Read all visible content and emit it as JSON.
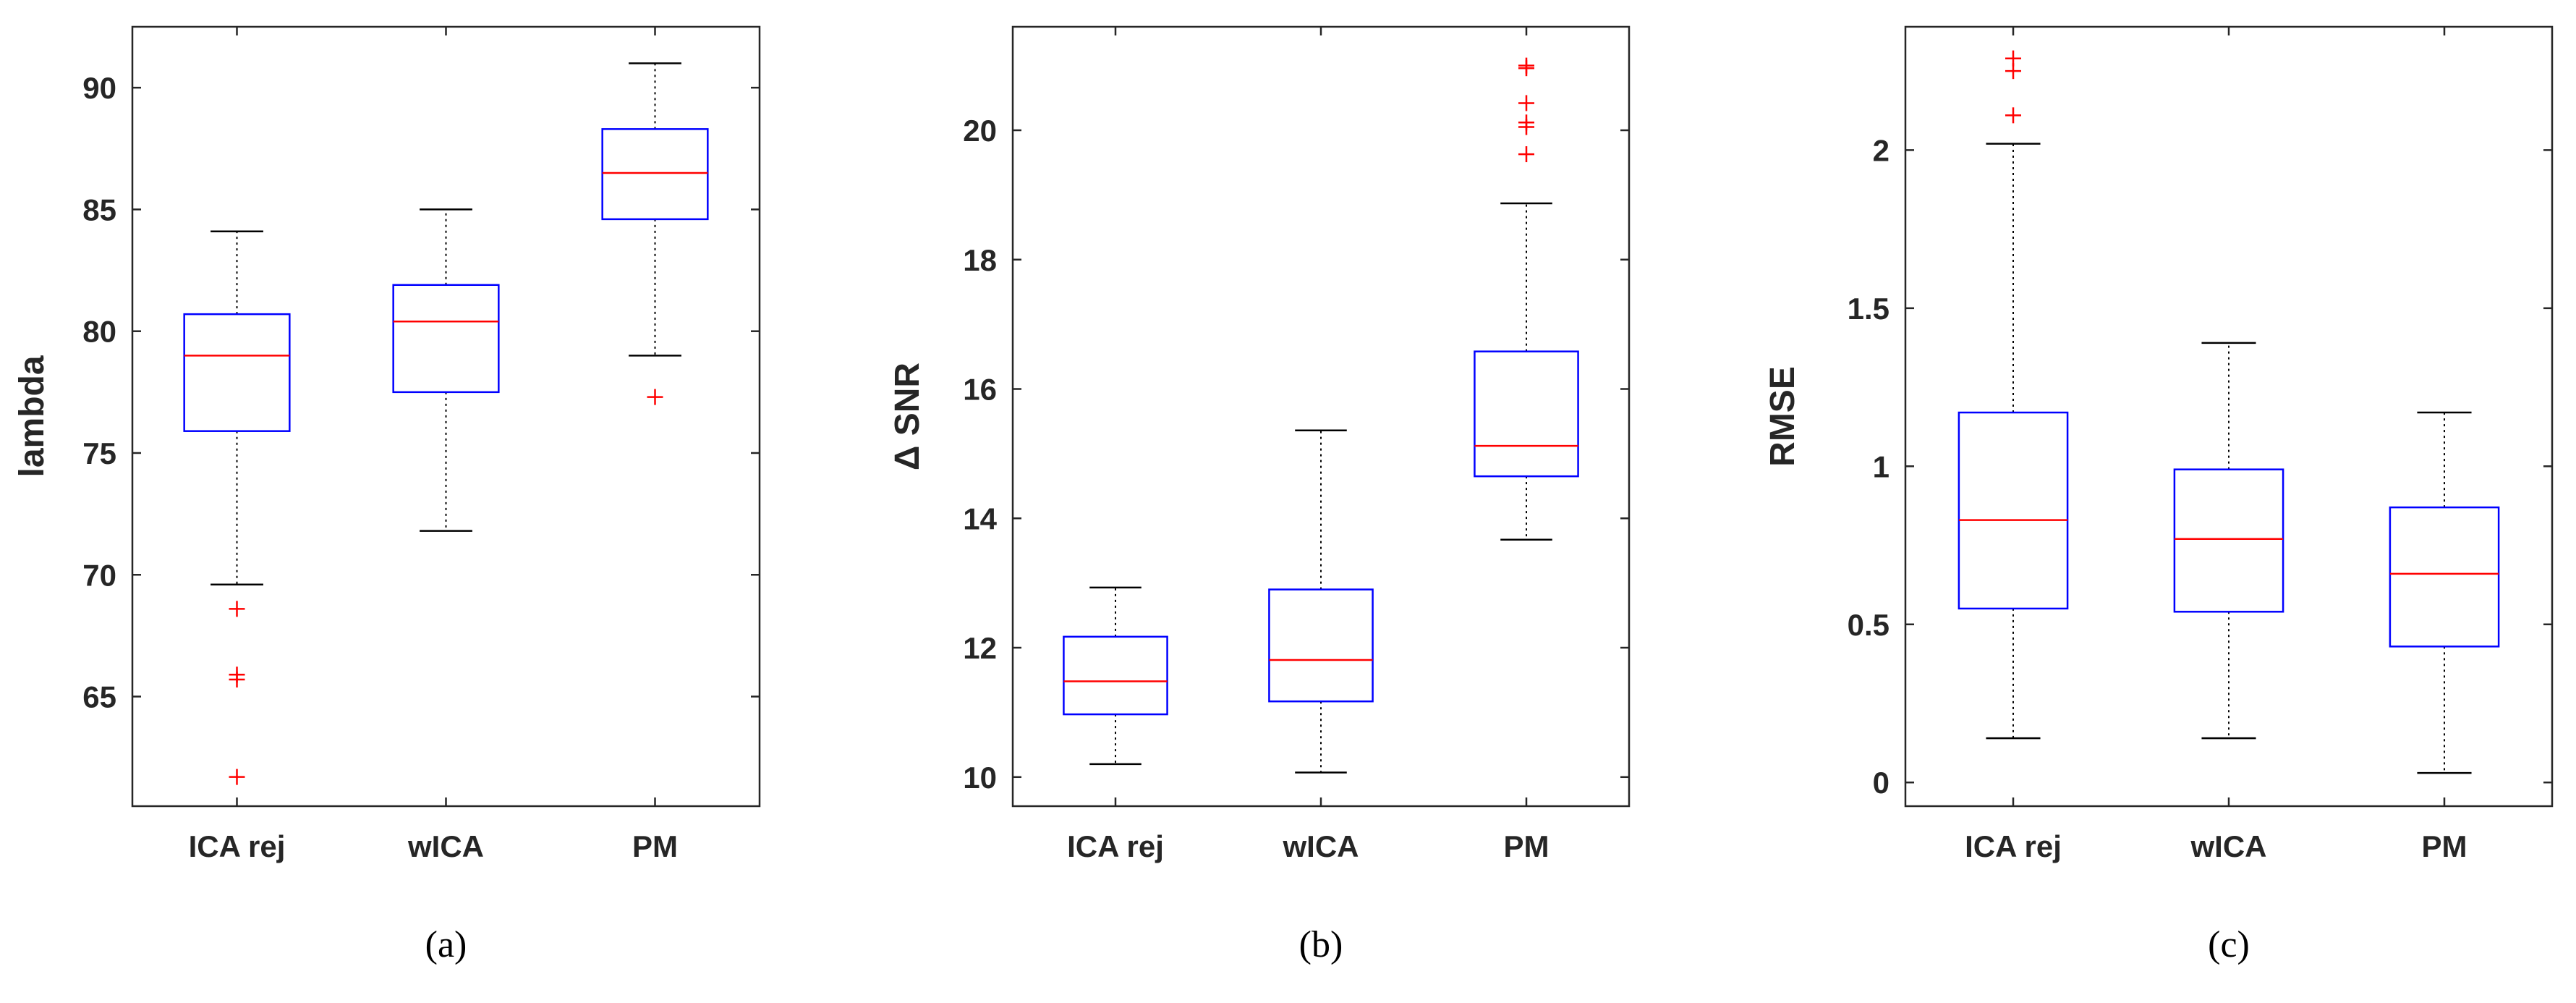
{
  "chart_data": [
    {
      "type": "box",
      "caption": "(a)",
      "title": "",
      "xlabel": "",
      "ylabel": "lambda",
      "categories": [
        "ICA rej",
        "wICA",
        "PM"
      ],
      "ylim": [
        60.5,
        92.5
      ],
      "yticks": [
        65,
        70,
        75,
        80,
        85,
        90
      ],
      "ytick_labels": [
        "65",
        "70",
        "75",
        "80",
        "85",
        "90"
      ],
      "boxes": [
        {
          "name": "ICA rej",
          "whisker_low": 69.6,
          "q1": 75.9,
          "median": 79.0,
          "q3": 80.7,
          "whisker_high": 84.1,
          "outliers": [
            68.6,
            65.9,
            65.7,
            61.7
          ]
        },
        {
          "name": "wICA",
          "whisker_low": 71.8,
          "q1": 77.5,
          "median": 80.4,
          "q3": 81.9,
          "whisker_high": 85.0,
          "outliers": []
        },
        {
          "name": "PM",
          "whisker_low": 79.0,
          "q1": 84.6,
          "median": 86.5,
          "q3": 88.3,
          "whisker_high": 91.0,
          "outliers": [
            77.3
          ]
        }
      ]
    },
    {
      "type": "box",
      "caption": "(b)",
      "title": "",
      "xlabel": "",
      "ylabel": "Δ SNR",
      "categories": [
        "ICA rej",
        "wICA",
        "PM"
      ],
      "ylim": [
        9.55,
        21.6
      ],
      "yticks": [
        10,
        12,
        14,
        16,
        18,
        20
      ],
      "ytick_labels": [
        "10",
        "12",
        "14",
        "16",
        "18",
        "20"
      ],
      "boxes": [
        {
          "name": "ICA rej",
          "whisker_low": 10.2,
          "q1": 10.97,
          "median": 11.48,
          "q3": 12.17,
          "whisker_high": 12.93,
          "outliers": []
        },
        {
          "name": "wICA",
          "whisker_low": 10.07,
          "q1": 11.17,
          "median": 11.81,
          "q3": 12.9,
          "whisker_high": 15.36,
          "outliers": []
        },
        {
          "name": "PM",
          "whisker_low": 13.67,
          "q1": 14.65,
          "median": 15.12,
          "q3": 16.58,
          "whisker_high": 18.87,
          "outliers": [
            21.0,
            20.96,
            20.42,
            20.12,
            20.05,
            19.63
          ]
        }
      ]
    },
    {
      "type": "box",
      "caption": "(c)",
      "title": "",
      "xlabel": "",
      "ylabel": "RMSE",
      "categories": [
        "ICA rej",
        "wICA",
        "PM"
      ],
      "ylim": [
        -0.075,
        2.39
      ],
      "yticks": [
        0,
        0.5,
        1,
        1.5,
        2
      ],
      "ytick_labels": [
        "0",
        "0.5",
        "1",
        "1.5",
        "2"
      ],
      "boxes": [
        {
          "name": "ICA rej",
          "whisker_low": 0.14,
          "q1": 0.55,
          "median": 0.83,
          "q3": 1.17,
          "whisker_high": 2.02,
          "outliers": [
            2.29,
            2.25,
            2.11
          ]
        },
        {
          "name": "wICA",
          "whisker_low": 0.14,
          "q1": 0.54,
          "median": 0.77,
          "q3": 0.99,
          "whisker_high": 1.39,
          "outliers": []
        },
        {
          "name": "PM",
          "whisker_low": 0.03,
          "q1": 0.43,
          "median": 0.66,
          "q3": 0.87,
          "whisker_high": 1.17,
          "outliers": []
        }
      ]
    }
  ],
  "colors": {
    "box": "#0000ff",
    "median": "#ff0000",
    "outlier": "#ff0000",
    "whisker": "#000000",
    "axis": "#262626"
  }
}
